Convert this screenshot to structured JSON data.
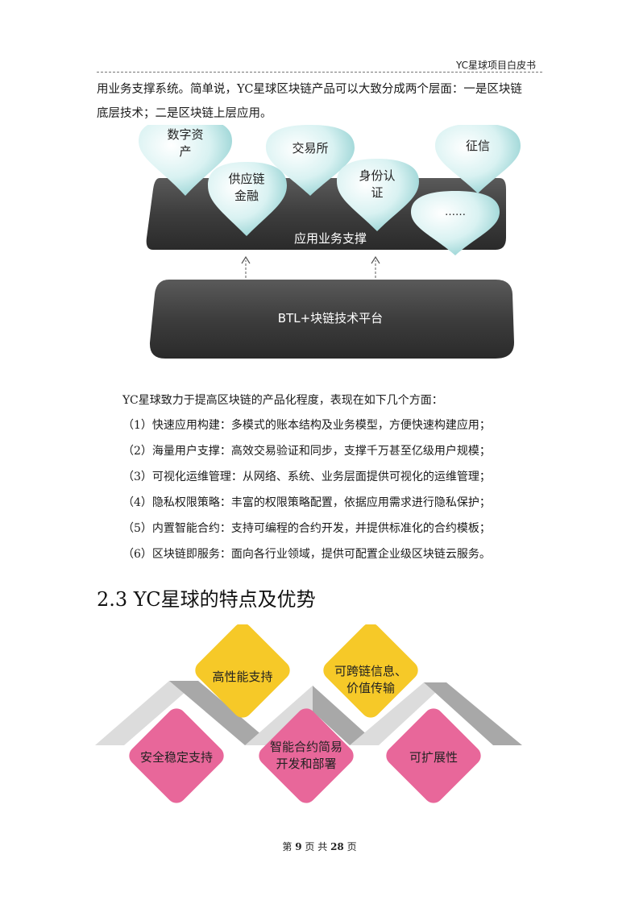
{
  "header": {
    "title": "YC星球项目白皮书"
  },
  "intro": {
    "line1": "用业务支撑系统。简单说，YC星球区块链产品可以大致分成两个层面：一是区块链",
    "line2": "底层技术；二是区块链上层应用。"
  },
  "diagram1": {
    "app_layer_label": "应用业务支撑",
    "platform_label": "BTL+块链技术平台",
    "bubbles": [
      {
        "line1": "数字资",
        "line2": "产"
      },
      {
        "line1": "交易所",
        "line2": ""
      },
      {
        "line1": "征信",
        "line2": ""
      },
      {
        "line1": "供应链",
        "line2": "金融"
      },
      {
        "line1": "身份认",
        "line2": "证"
      },
      {
        "line1": "……",
        "line2": ""
      }
    ]
  },
  "body": {
    "lead": "YC星球致力于提高区块链的产品化程度，表现在如下几个方面：",
    "items": [
      "（1）快速应用构建：多模式的账本结构及业务模型，方便快速构建应用；",
      "（2）海量用户支撑：高效交易验证和同步，支撑千万甚至亿级用户规模；",
      "（3）可视化运维管理：从网络、系统、业务层面提供可视化的运维管理；",
      "（4）隐私权限策略：丰富的权限策略配置，依据应用需求进行隐私保护；",
      "（5）内置智能合约：支持可编程的合约开发，并提供标准化的合约模板；",
      "（6）区块链即服务：面向各行业领域，提供可配置企业级区块链云服务。"
    ]
  },
  "section": {
    "title": "2.3 YC星球的特点及优势"
  },
  "diagram2": {
    "yellow_color": "#f6c928",
    "pink_color": "#e8679a",
    "features": [
      {
        "line1": "高性能支持",
        "line2": ""
      },
      {
        "line1": "可跨链信息、",
        "line2": "价值传输"
      },
      {
        "line1": "安全稳定支持",
        "line2": ""
      },
      {
        "line1": "智能合约简易",
        "line2": "开发和部署"
      },
      {
        "line1": "可扩展性",
        "line2": ""
      }
    ]
  },
  "footer": {
    "prefix": "第",
    "page": "9",
    "mid": "页 共",
    "total": "28",
    "suffix": "页"
  }
}
